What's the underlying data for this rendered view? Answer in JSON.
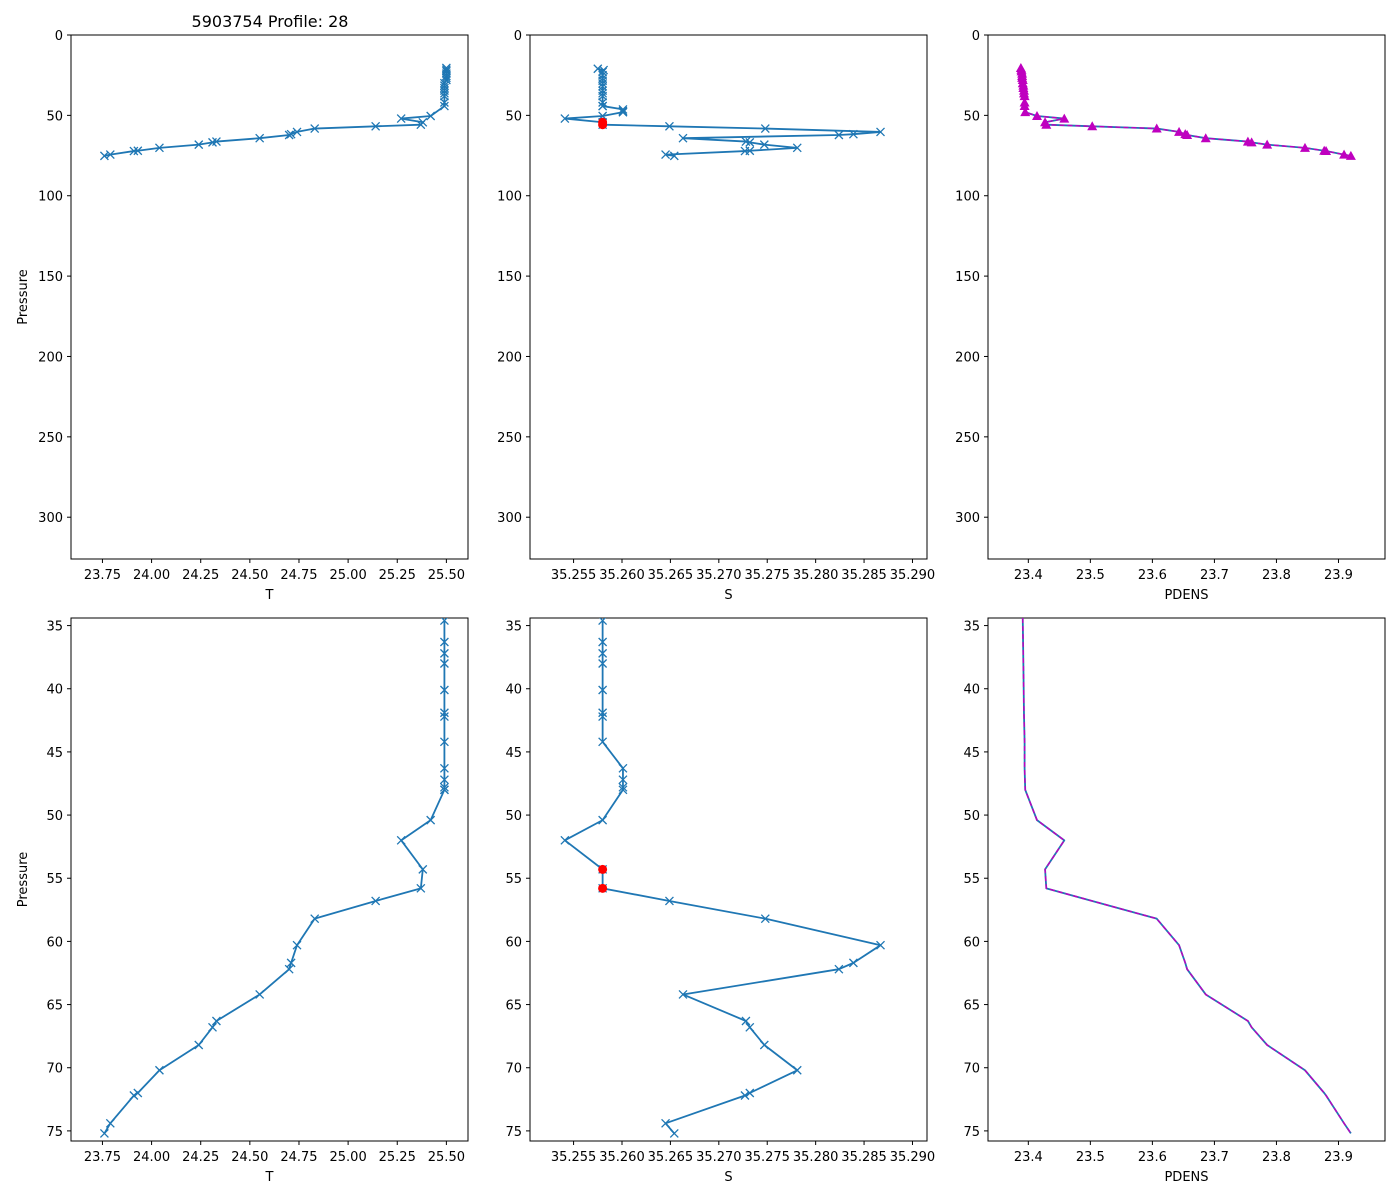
{
  "figure_title": "5903754 Profile: 28",
  "colors": {
    "line": "#1f77b4",
    "flag": "#ff0000",
    "dens_marker": "#bf00bf"
  },
  "chart_data": [
    {
      "name": "top-temperature",
      "type": "line",
      "xlabel": "T",
      "ylabel": "Pressure",
      "xlim": [
        23.59,
        25.61
      ],
      "ylim": [
        326,
        0
      ],
      "xticks": [
        23.75,
        24.0,
        24.25,
        24.5,
        24.75,
        25.0,
        25.25,
        25.5
      ],
      "xtick_labels": [
        "23.75",
        "24.00",
        "24.25",
        "24.50",
        "24.75",
        "25.00",
        "25.25",
        "25.50"
      ],
      "yticks": [
        0,
        50,
        100,
        150,
        200,
        250,
        300
      ],
      "ytick_labels": [
        "0",
        "50",
        "100",
        "150",
        "200",
        "250",
        "300"
      ],
      "series": [
        {
          "name": "T",
          "marker": "x",
          "x": [
            25.5,
            25.5,
            25.5,
            25.5,
            25.5,
            25.5,
            25.5,
            25.49,
            25.49,
            25.49,
            25.49,
            25.49,
            25.49,
            25.49,
            25.49,
            25.42,
            25.27,
            25.38,
            25.37,
            25.14,
            24.83,
            24.74,
            24.71,
            24.7,
            24.55,
            24.33,
            24.31,
            24.24,
            24.04,
            23.93,
            23.91,
            23.79,
            23.76
          ],
          "y": [
            20.5,
            21.6,
            22.6,
            24.0,
            25.5,
            26.7,
            28.0,
            30.0,
            31.5,
            33.0,
            34.6,
            36.3,
            38.0,
            42.0,
            44.2,
            50.4,
            52.0,
            54.3,
            55.8,
            56.8,
            58.2,
            60.3,
            61.7,
            62.2,
            64.2,
            66.3,
            66.8,
            68.2,
            70.2,
            72.0,
            72.2,
            74.4,
            75.2
          ]
        }
      ]
    },
    {
      "name": "top-salinity",
      "type": "line",
      "xlabel": "S",
      "ylabel": "",
      "xlim": [
        35.2505,
        35.2915
      ],
      "ylim": [
        326,
        0
      ],
      "xticks": [
        35.255,
        35.26,
        35.265,
        35.27,
        35.275,
        35.28,
        35.285,
        35.29
      ],
      "xtick_labels": [
        "35.255",
        "35.260",
        "35.265",
        "35.270",
        "35.275",
        "35.280",
        "35.285",
        "35.290"
      ],
      "yticks": [
        0,
        50,
        100,
        150,
        200,
        250,
        300
      ],
      "ytick_labels": [
        "0",
        "50",
        "100",
        "150",
        "200",
        "250",
        "300"
      ],
      "series": [
        {
          "name": "S",
          "marker": "x",
          "x": [
            35.2575,
            35.2581,
            35.258,
            35.258,
            35.258,
            35.258,
            35.258,
            35.258,
            35.258,
            35.258,
            35.258,
            35.258,
            35.258,
            35.258,
            35.2601,
            35.2601,
            35.2601,
            35.2601,
            35.258,
            35.2541,
            35.258,
            35.258,
            35.2649,
            35.2748,
            35.2867,
            35.2839,
            35.2824,
            35.2663,
            35.2728,
            35.2732,
            35.2747,
            35.2781,
            35.2732,
            35.2727,
            35.2645,
            35.2654
          ],
          "y": [
            21.0,
            21.8,
            23.0,
            25.0,
            27.0,
            28.5,
            30.2,
            32.0,
            34.6,
            36.3,
            38.0,
            42.0,
            44.2,
            44.2,
            46.3,
            47.3,
            48.0,
            48.0,
            50.4,
            52.0,
            54.3,
            55.8,
            56.8,
            58.2,
            60.3,
            61.7,
            62.2,
            64.2,
            66.3,
            66.8,
            68.2,
            70.2,
            72.0,
            72.2,
            74.4,
            75.2
          ]
        }
      ],
      "flagged_points": {
        "x": [
          35.258,
          35.258
        ],
        "y": [
          54.3,
          55.8
        ]
      }
    },
    {
      "name": "top-density",
      "type": "line",
      "xlabel": "PDENS",
      "ylabel": "",
      "xlim": [
        23.335,
        23.975
      ],
      "ylim": [
        326,
        0
      ],
      "xticks": [
        23.4,
        23.5,
        23.6,
        23.7,
        23.8,
        23.9
      ],
      "xtick_labels": [
        "23.4",
        "23.5",
        "23.6",
        "23.7",
        "23.8",
        "23.9"
      ],
      "yticks": [
        0,
        50,
        100,
        150,
        200,
        250,
        300
      ],
      "ytick_labels": [
        "0",
        "50",
        "100",
        "150",
        "200",
        "250",
        "300"
      ],
      "series": [
        {
          "name": "PDENS",
          "marker": "^",
          "x": [
            23.388,
            23.389,
            23.389,
            23.39,
            23.39,
            23.39,
            23.391,
            23.391,
            23.392,
            23.392,
            23.393,
            23.393,
            23.394,
            23.394,
            23.394,
            23.395,
            23.414,
            23.458,
            23.427,
            23.429,
            23.503,
            23.607,
            23.643,
            23.653,
            23.656,
            23.686,
            23.754,
            23.76,
            23.785,
            23.846,
            23.877,
            23.88,
            23.909,
            23.92
          ],
          "y": [
            20.5,
            21.6,
            22.6,
            24.0,
            25.5,
            26.7,
            28.0,
            30.0,
            31.5,
            33.0,
            34.6,
            36.3,
            38.0,
            42.0,
            44.2,
            48.0,
            50.4,
            52.0,
            54.3,
            55.8,
            56.8,
            58.2,
            60.3,
            61.7,
            62.2,
            64.2,
            66.3,
            66.8,
            68.2,
            70.2,
            72.0,
            72.2,
            74.4,
            75.2
          ]
        }
      ]
    },
    {
      "name": "bottom-temperature",
      "type": "line",
      "xlabel": "T",
      "ylabel": "Pressure",
      "xlim": [
        23.59,
        25.61
      ],
      "ylim": [
        75.8,
        34.4
      ],
      "xticks": [
        23.75,
        24.0,
        24.25,
        24.5,
        24.75,
        25.0,
        25.25,
        25.5
      ],
      "xtick_labels": [
        "23.75",
        "24.00",
        "24.25",
        "24.50",
        "24.75",
        "25.00",
        "25.25",
        "25.50"
      ],
      "yticks": [
        35,
        40,
        45,
        50,
        55,
        60,
        65,
        70,
        75
      ],
      "ytick_labels": [
        "35",
        "40",
        "45",
        "50",
        "55",
        "60",
        "65",
        "70",
        "75"
      ],
      "series": [
        {
          "name": "T",
          "marker": "x",
          "x": [
            25.49,
            25.49,
            25.49,
            25.49,
            25.49,
            25.49,
            25.49,
            25.49,
            25.49,
            25.49,
            25.49,
            25.49,
            25.49,
            25.42,
            25.27,
            25.38,
            25.37,
            25.14,
            24.83,
            24.74,
            24.71,
            24.7,
            24.55,
            24.33,
            24.31,
            24.24,
            24.04,
            23.93,
            23.91,
            23.79,
            23.76
          ],
          "y": [
            34.6,
            36.3,
            37.2,
            38.0,
            40.1,
            41.9,
            42.2,
            44.2,
            46.3,
            47.2,
            47.8,
            48.0,
            48.0,
            50.4,
            52.0,
            54.3,
            55.8,
            56.8,
            58.2,
            60.3,
            61.7,
            62.2,
            64.2,
            66.3,
            66.8,
            68.2,
            70.2,
            72.0,
            72.2,
            74.4,
            75.2
          ]
        }
      ]
    },
    {
      "name": "bottom-salinity",
      "type": "line",
      "xlabel": "S",
      "ylabel": "",
      "xlim": [
        35.2505,
        35.2915
      ],
      "ylim": [
        75.8,
        34.4
      ],
      "xticks": [
        35.255,
        35.26,
        35.265,
        35.27,
        35.275,
        35.28,
        35.285,
        35.29
      ],
      "xtick_labels": [
        "35.255",
        "35.260",
        "35.265",
        "35.270",
        "35.275",
        "35.280",
        "35.285",
        "35.290"
      ],
      "yticks": [
        35,
        40,
        45,
        50,
        55,
        60,
        65,
        70,
        75
      ],
      "ytick_labels": [
        "35",
        "40",
        "45",
        "50",
        "55",
        "60",
        "65",
        "70",
        "75"
      ],
      "series": [
        {
          "name": "S",
          "marker": "x",
          "x": [
            35.258,
            35.258,
            35.258,
            35.258,
            35.258,
            35.258,
            35.258,
            35.258,
            35.2601,
            35.2601,
            35.2601,
            35.2601,
            35.258,
            35.2541,
            35.258,
            35.258,
            35.2649,
            35.2748,
            35.2867,
            35.2839,
            35.2824,
            35.2663,
            35.2728,
            35.2732,
            35.2747,
            35.2781,
            35.2732,
            35.2727,
            35.2645,
            35.2654
          ],
          "y": [
            34.6,
            36.3,
            37.2,
            38.0,
            40.1,
            41.9,
            42.2,
            44.2,
            46.3,
            47.2,
            47.8,
            48.0,
            50.4,
            52.0,
            54.3,
            55.8,
            56.8,
            58.2,
            60.3,
            61.7,
            62.2,
            64.2,
            66.3,
            66.8,
            68.2,
            70.2,
            72.0,
            72.2,
            74.4,
            75.2
          ]
        }
      ],
      "flagged_points": {
        "x": [
          35.258,
          35.258
        ],
        "y": [
          54.3,
          55.8
        ]
      }
    },
    {
      "name": "bottom-density",
      "type": "line",
      "xlabel": "PDENS",
      "ylabel": "",
      "xlim": [
        23.335,
        23.975
      ],
      "ylim": [
        75.8,
        34.4
      ],
      "xticks": [
        23.4,
        23.5,
        23.6,
        23.7,
        23.8,
        23.9
      ],
      "xtick_labels": [
        "23.4",
        "23.5",
        "23.6",
        "23.7",
        "23.8",
        "23.9"
      ],
      "yticks": [
        35,
        40,
        45,
        50,
        55,
        60,
        65,
        70,
        75
      ],
      "ytick_labels": [
        "35",
        "40",
        "45",
        "50",
        "55",
        "60",
        "65",
        "70",
        "75"
      ],
      "series": [
        {
          "name": "PDENS",
          "marker": "none",
          "x": [
            23.391,
            23.392,
            23.393,
            23.394,
            23.394,
            23.395,
            23.414,
            23.458,
            23.427,
            23.429,
            23.503,
            23.607,
            23.643,
            23.653,
            23.656,
            23.686,
            23.754,
            23.76,
            23.785,
            23.846,
            23.877,
            23.88,
            23.909,
            23.92
          ],
          "y": [
            34.4,
            38.0,
            42.0,
            44.2,
            46.3,
            48.0,
            50.4,
            52.0,
            54.3,
            55.8,
            56.8,
            58.2,
            60.3,
            61.7,
            62.2,
            64.2,
            66.3,
            66.8,
            68.2,
            70.2,
            72.0,
            72.2,
            74.4,
            75.2
          ]
        }
      ]
    }
  ]
}
